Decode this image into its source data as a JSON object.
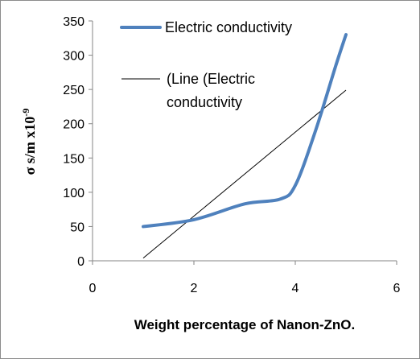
{
  "chart_data": {
    "type": "line",
    "title": "",
    "xlabel": "Weight percentage of Nanon-ZnO.",
    "ylabel_main": "σ s/m x10",
    "ylabel_exp": "-9",
    "xlim": [
      0,
      6
    ],
    "ylim": [
      0,
      350
    ],
    "xticks": [
      "0",
      "2",
      "4",
      "6"
    ],
    "yticks": [
      "0",
      "50",
      "100",
      "150",
      "200",
      "250",
      "300",
      "350"
    ],
    "grid": false,
    "legend_position": "top-right",
    "series": [
      {
        "name": "Electric conductivity",
        "color": "#4f81bd",
        "x": [
          1,
          2,
          3,
          3.7,
          4,
          4.4,
          4.8,
          5
        ],
        "y": [
          50,
          60,
          83,
          90,
          110,
          190,
          285,
          330
        ]
      },
      {
        "name": "(Line (Electric conductivity",
        "name_lines": [
          "(Line (Electric",
          "conductivity"
        ],
        "color": "#000000",
        "x": [
          1,
          5
        ],
        "y": [
          4,
          249
        ]
      }
    ]
  }
}
